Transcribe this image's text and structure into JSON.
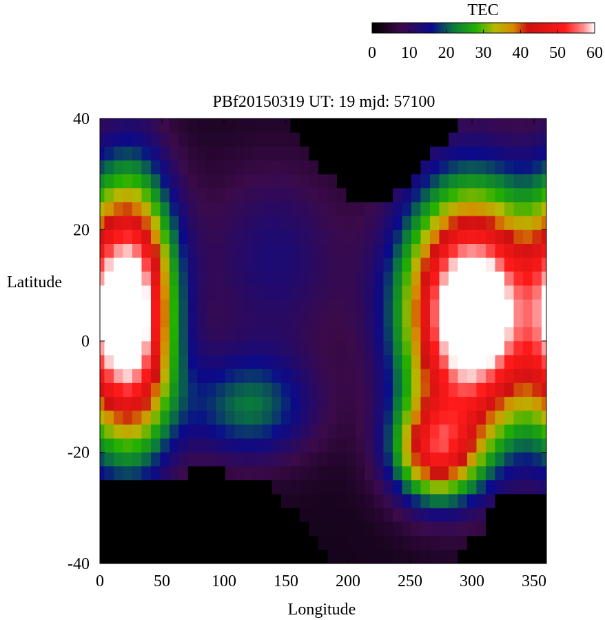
{
  "chart_data": {
    "type": "heatmap",
    "title": "PBf20150319  UT: 19  mjd: 57100",
    "xlabel": "Longitude",
    "ylabel": "Latitude",
    "xlim": [
      0,
      360
    ],
    "ylim": [
      -40,
      40
    ],
    "xticks": [
      "0",
      "50",
      "100",
      "150",
      "200",
      "250",
      "300",
      "350"
    ],
    "yticks": [
      "40",
      "20",
      "0",
      "-20",
      "-40"
    ],
    "grid": false,
    "colorbar": {
      "label": "TEC",
      "range": [
        0,
        60
      ],
      "ticks": [
        "0",
        "10",
        "20",
        "30",
        "40",
        "50",
        "60"
      ],
      "placement": "top-right",
      "colormap": [
        [
          0,
          "#000000"
        ],
        [
          8,
          "#3b0a4a"
        ],
        [
          16,
          "#0a0a8c"
        ],
        [
          22,
          "#0a7a3c"
        ],
        [
          28,
          "#22b000"
        ],
        [
          33,
          "#b4b800"
        ],
        [
          38,
          "#d68a00"
        ],
        [
          42,
          "#cc1010"
        ],
        [
          52,
          "#ff1a1a"
        ],
        [
          57,
          "#ff8c8c"
        ],
        [
          60,
          "#ffffff"
        ]
      ]
    },
    "grid_resolution": {
      "d_lon": 7.5,
      "d_lat": 2.5
    },
    "tec_model": {
      "dark_boundary_south_lat": [
        -26,
        -26,
        -25,
        -25,
        -25,
        -26,
        -25,
        -25,
        -25,
        -24,
        -23,
        -23,
        -23,
        -23,
        -24,
        -24,
        -25,
        -25,
        -26,
        -27,
        -29,
        -31,
        -33,
        -36,
        -38,
        -40,
        -40,
        -40,
        -40,
        -40,
        -40,
        -40,
        -40,
        -40,
        -40,
        -40,
        -40,
        -40,
        -40,
        -38,
        -36,
        -34,
        -31,
        -28,
        -27,
        -27,
        -27,
        -27,
        -27
      ],
      "dark_boundary_north_lat": [
        40,
        40,
        40,
        40,
        40,
        40,
        40,
        40,
        40,
        40,
        40,
        40,
        40,
        40,
        40,
        40,
        40,
        40,
        40,
        40,
        39,
        37,
        35,
        33,
        31,
        29,
        27,
        26,
        25,
        25,
        25,
        26,
        27,
        28,
        30,
        32,
        34,
        36,
        38,
        40,
        40,
        40,
        40,
        40,
        40,
        40,
        40,
        40,
        40
      ]
    }
  }
}
